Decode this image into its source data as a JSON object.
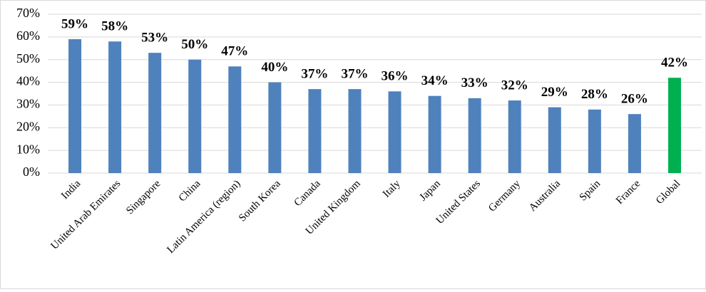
{
  "chart_data": {
    "type": "bar",
    "categories": [
      "India",
      "United Arab Emirates",
      "Singapore",
      "China",
      "Latin America (region)",
      "South Korea",
      "Canada",
      "United Kingdom",
      "Italy",
      "Japan",
      "United States",
      "Germany",
      "Australia",
      "Spain",
      "France",
      "Global"
    ],
    "values": [
      59,
      58,
      53,
      50,
      47,
      40,
      37,
      37,
      36,
      34,
      33,
      32,
      29,
      28,
      26,
      42
    ],
    "value_labels": [
      "59%",
      "58%",
      "53%",
      "50%",
      "47%",
      "40%",
      "37%",
      "37%",
      "36%",
      "34%",
      "33%",
      "32%",
      "29%",
      "28%",
      "26%",
      "42%"
    ],
    "colors": [
      "#4f81bd",
      "#4f81bd",
      "#4f81bd",
      "#4f81bd",
      "#4f81bd",
      "#4f81bd",
      "#4f81bd",
      "#4f81bd",
      "#4f81bd",
      "#4f81bd",
      "#4f81bd",
      "#4f81bd",
      "#4f81bd",
      "#4f81bd",
      "#4f81bd",
      "#00b050"
    ],
    "ylim": [
      0,
      70
    ],
    "yticks": [
      {
        "value": 0,
        "label": "0%"
      },
      {
        "value": 10,
        "label": "10%"
      },
      {
        "value": 20,
        "label": "20%"
      },
      {
        "value": 30,
        "label": "30%"
      },
      {
        "value": 40,
        "label": "40%"
      },
      {
        "value": 50,
        "label": "50%"
      },
      {
        "value": 60,
        "label": "60%"
      },
      {
        "value": 70,
        "label": "70%"
      }
    ],
    "grid": true
  }
}
